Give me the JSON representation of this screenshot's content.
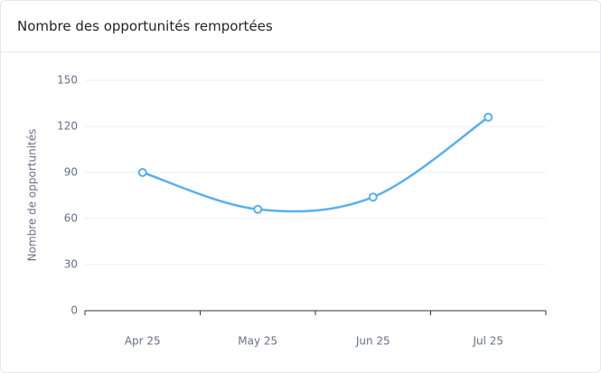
{
  "header": {
    "title": "Nombre des opportunités remportées"
  },
  "chart_data": {
    "type": "line",
    "y_label": "Nombre de opportunités",
    "categories": [
      "Apr 25",
      "May 25",
      "Jun 25",
      "Jul 25"
    ],
    "series": [
      {
        "name": "Nombre des opportunités remportées",
        "color": "#5aafea",
        "values": [
          90,
          66,
          74,
          126
        ]
      }
    ],
    "ylim": [
      0,
      150
    ],
    "yticks": [
      0,
      30,
      60,
      90,
      120,
      150
    ],
    "grid": true,
    "smooth": true
  }
}
